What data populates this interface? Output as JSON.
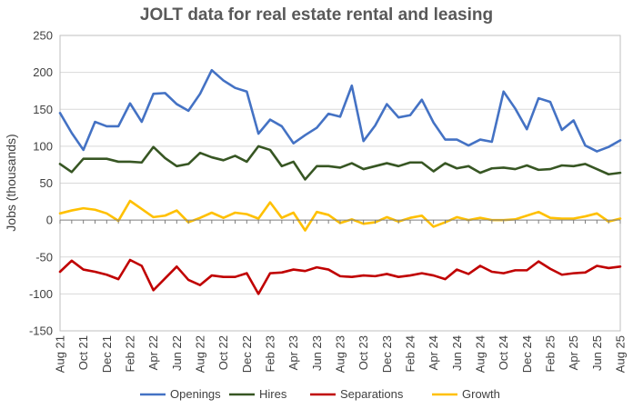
{
  "chart_data": {
    "type": "line",
    "title": "JOLT data for real estate rental and leasing",
    "xlabel": "",
    "ylabel": "Jobs (thousands)",
    "ylim": [
      -150,
      250
    ],
    "yticks": [
      -150,
      -100,
      -50,
      0,
      50,
      100,
      150,
      200,
      250
    ],
    "grid": "horizontal",
    "legend_position": "bottom",
    "x": [
      "Aug 21",
      "Sep 21",
      "Oct 21",
      "Nov 21",
      "Dec 21",
      "Jan 22",
      "Feb 22",
      "Mar 22",
      "Apr 22",
      "May 22",
      "Jun 22",
      "Jul 22",
      "Aug 22",
      "Sep 22",
      "Oct 22",
      "Nov 22",
      "Dec 22",
      "Jan 23",
      "Feb 23",
      "Mar 23",
      "Apr 23",
      "May 23",
      "Jun 23",
      "Jul 23",
      "Aug 23",
      "Sep 23",
      "Oct 23",
      "Nov 23",
      "Dec 23",
      "Jan 24",
      "Feb 24",
      "Mar 24",
      "Apr 24",
      "May 24",
      "Jun 24",
      "Jul 24",
      "Aug 24",
      "Sep 24",
      "Oct 24",
      "Nov 24",
      "Dec 24",
      "Jan 25",
      "Feb 25",
      "Mar 25",
      "Apr 25",
      "May 25",
      "Jun 25",
      "Jul 25",
      "Aug 25"
    ],
    "x_tick_labels": [
      "Aug 21",
      "Oct 21",
      "Dec 21",
      "Feb 22",
      "Apr 22",
      "Jun 22",
      "Aug 22",
      "Oct 22",
      "Dec 22",
      "Feb 23",
      "Apr 23",
      "Jun 23",
      "Aug 23",
      "Oct 23",
      "Dec 23",
      "Feb 24",
      "Apr 24",
      "Jun 24",
      "Aug 24",
      "Oct 24",
      "Dec 24",
      "Feb 25",
      "Apr 25",
      "Jun 25",
      "Aug 25"
    ],
    "series": [
      {
        "name": "Openings",
        "color": "#4472c4",
        "values": [
          145,
          118,
          95,
          133,
          127,
          127,
          158,
          133,
          171,
          172,
          157,
          148,
          171,
          203,
          189,
          179,
          174,
          117,
          136,
          127,
          104,
          115,
          125,
          144,
          140,
          182,
          107,
          128,
          157,
          139,
          142,
          163,
          132,
          109,
          109,
          101,
          109,
          106,
          174,
          151,
          123,
          165,
          160,
          122,
          135,
          101,
          93,
          99,
          108
        ]
      },
      {
        "name": "Hires",
        "color": "#375623",
        "values": [
          76,
          65,
          83,
          83,
          83,
          79,
          79,
          78,
          99,
          84,
          73,
          76,
          91,
          85,
          81,
          87,
          79,
          100,
          95,
          73,
          79,
          55,
          73,
          73,
          71,
          77,
          69,
          73,
          77,
          73,
          78,
          78,
          66,
          77,
          70,
          73,
          64,
          70,
          71,
          69,
          74,
          68,
          69,
          74,
          73,
          76,
          69,
          62,
          64
        ]
      },
      {
        "name": "Separations",
        "color": "#c00000",
        "values": [
          -70,
          -55,
          -67,
          -70,
          -74,
          -80,
          -54,
          -62,
          -95,
          -79,
          -63,
          -81,
          -88,
          -75,
          -77,
          -77,
          -72,
          -100,
          -72,
          -71,
          -67,
          -69,
          -64,
          -67,
          -76,
          -77,
          -75,
          -76,
          -73,
          -77,
          -75,
          -72,
          -75,
          -80,
          -67,
          -73,
          -62,
          -70,
          -72,
          -68,
          -68,
          -56,
          -66,
          -74,
          -72,
          -71,
          -62,
          -65,
          -63
        ]
      },
      {
        "name": "Growth",
        "color": "#ffc000",
        "values": [
          9,
          13,
          16,
          14,
          9,
          -1,
          26,
          15,
          4,
          6,
          13,
          -3,
          3,
          10,
          3,
          10,
          8,
          2,
          24,
          3,
          10,
          -14,
          11,
          7,
          -4,
          1,
          -5,
          -3,
          4,
          -2,
          3,
          6,
          -9,
          -3,
          4,
          0,
          3,
          0,
          0,
          1,
          6,
          11,
          3,
          2,
          2,
          5,
          9,
          -2,
          2
        ]
      }
    ]
  }
}
